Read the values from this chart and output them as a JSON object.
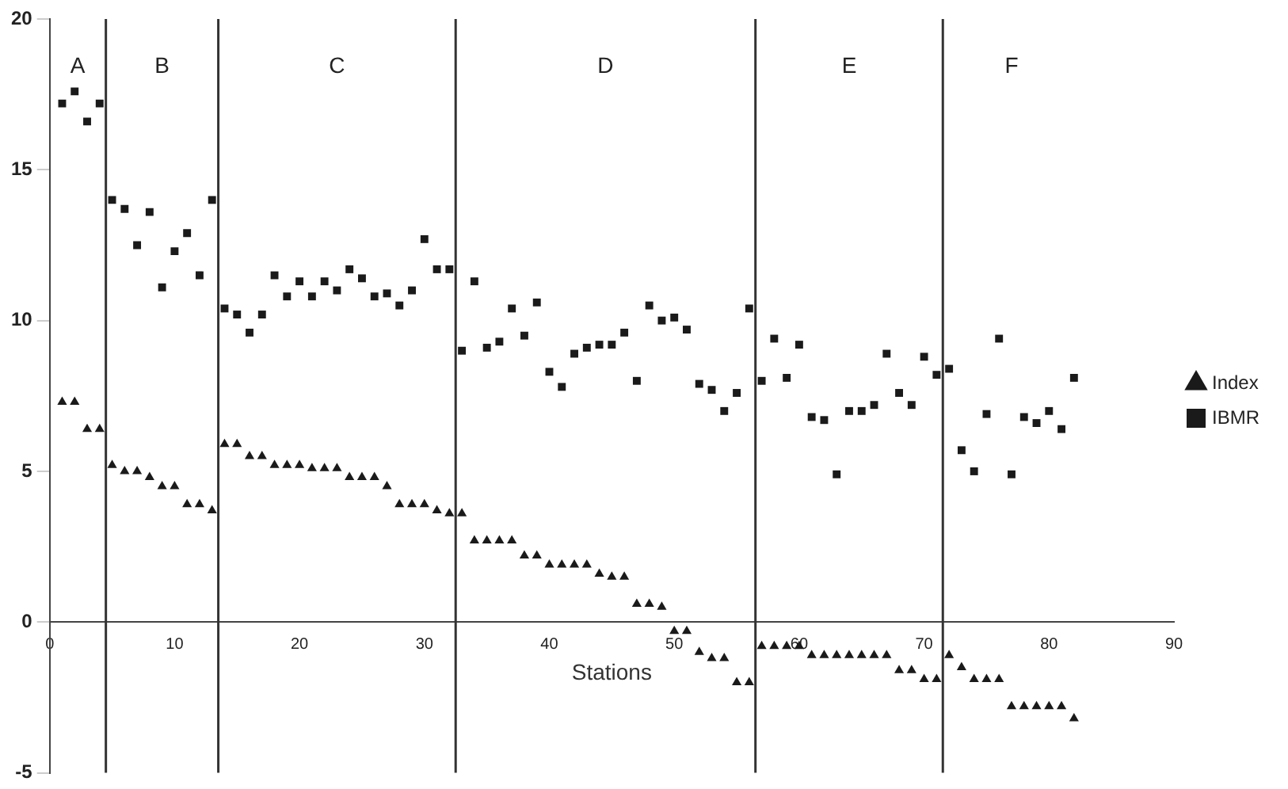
{
  "chart_data": {
    "type": "scatter",
    "xlabel": "Stations",
    "xlim": [
      0,
      90
    ],
    "xticks": [
      0,
      10,
      20,
      30,
      40,
      50,
      60,
      70,
      80,
      90
    ],
    "ylim": [
      -5,
      20
    ],
    "yticks": [
      -5,
      0,
      5,
      10,
      15,
      20
    ],
    "grid": false,
    "legend": "right",
    "x": [
      1,
      2,
      3,
      4,
      5,
      6,
      7,
      8,
      9,
      10,
      11,
      12,
      13,
      14,
      15,
      16,
      17,
      18,
      19,
      20,
      21,
      22,
      23,
      24,
      25,
      26,
      27,
      28,
      29,
      30,
      31,
      32,
      33,
      34,
      35,
      36,
      37,
      38,
      39,
      40,
      41,
      42,
      43,
      44,
      45,
      46,
      47,
      48,
      49,
      50,
      51,
      52,
      53,
      54,
      55,
      56,
      57,
      58,
      59,
      60,
      61,
      62,
      63,
      64,
      65,
      66,
      67,
      68,
      69,
      70,
      71,
      72,
      73,
      74,
      75,
      76,
      77,
      78,
      79,
      80,
      81,
      82
    ],
    "series": [
      {
        "name": "Index",
        "color": "#1a1a1a",
        "marker": "triangle",
        "values": [
          7.3,
          7.3,
          6.4,
          6.4,
          5.2,
          5.0,
          5.0,
          4.8,
          4.5,
          4.5,
          3.9,
          3.9,
          3.7,
          5.9,
          5.9,
          5.5,
          5.5,
          5.2,
          5.2,
          5.2,
          5.1,
          5.1,
          5.1,
          4.8,
          4.8,
          4.8,
          4.5,
          3.9,
          3.9,
          3.9,
          3.7,
          3.6,
          3.6,
          2.7,
          2.7,
          2.7,
          2.7,
          2.2,
          2.2,
          1.9,
          1.9,
          1.9,
          1.9,
          1.6,
          1.5,
          1.5,
          0.6,
          0.6,
          0.5,
          -0.3,
          -0.3,
          -1.0,
          -1.2,
          -1.2,
          -2.0,
          -2.0,
          -0.8,
          -0.8,
          -0.8,
          -0.8,
          -1.1,
          -1.1,
          -1.1,
          -1.1,
          -1.1,
          -1.1,
          -1.1,
          -1.6,
          -1.6,
          -1.9,
          -1.9,
          -1.1,
          -1.5,
          -1.9,
          -1.9,
          -1.9,
          -2.8,
          -2.8,
          -2.8,
          -2.8,
          -2.8,
          -3.2
        ]
      },
      {
        "name": "IBMR",
        "color": "#1a1a1a",
        "marker": "square",
        "values": [
          17.2,
          17.6,
          16.6,
          17.2,
          14.0,
          13.7,
          12.5,
          13.6,
          11.1,
          12.3,
          12.9,
          11.5,
          14.0,
          10.4,
          10.2,
          9.6,
          10.2,
          11.5,
          10.8,
          11.3,
          10.8,
          11.3,
          11.0,
          11.7,
          11.4,
          10.8,
          10.9,
          10.5,
          11.0,
          12.7,
          11.7,
          11.7,
          9.0,
          11.3,
          9.1,
          9.3,
          10.4,
          9.5,
          10.6,
          8.3,
          7.8,
          8.9,
          9.1,
          9.2,
          9.2,
          9.6,
          8.0,
          10.5,
          10.0,
          10.1,
          9.7,
          7.9,
          7.7,
          7.0,
          7.6,
          10.4,
          8.0,
          9.4,
          8.1,
          9.2,
          6.8,
          6.7,
          4.9,
          7.0,
          7.0,
          7.2,
          8.9,
          7.6,
          7.2,
          8.8,
          8.2,
          8.4,
          5.7,
          5.0,
          6.9,
          9.4,
          4.9,
          6.8,
          6.6,
          7.0,
          6.4,
          8.1
        ]
      }
    ],
    "ref_lines": [
      {
        "axis": "x",
        "value": 4.5
      },
      {
        "axis": "x",
        "value": 13.5
      },
      {
        "axis": "x",
        "value": 32.5
      },
      {
        "axis": "x",
        "value": 56.5
      },
      {
        "axis": "x",
        "value": 71.5
      }
    ],
    "annotations": [
      "A",
      "B",
      "C",
      "D",
      "E",
      "F"
    ]
  }
}
